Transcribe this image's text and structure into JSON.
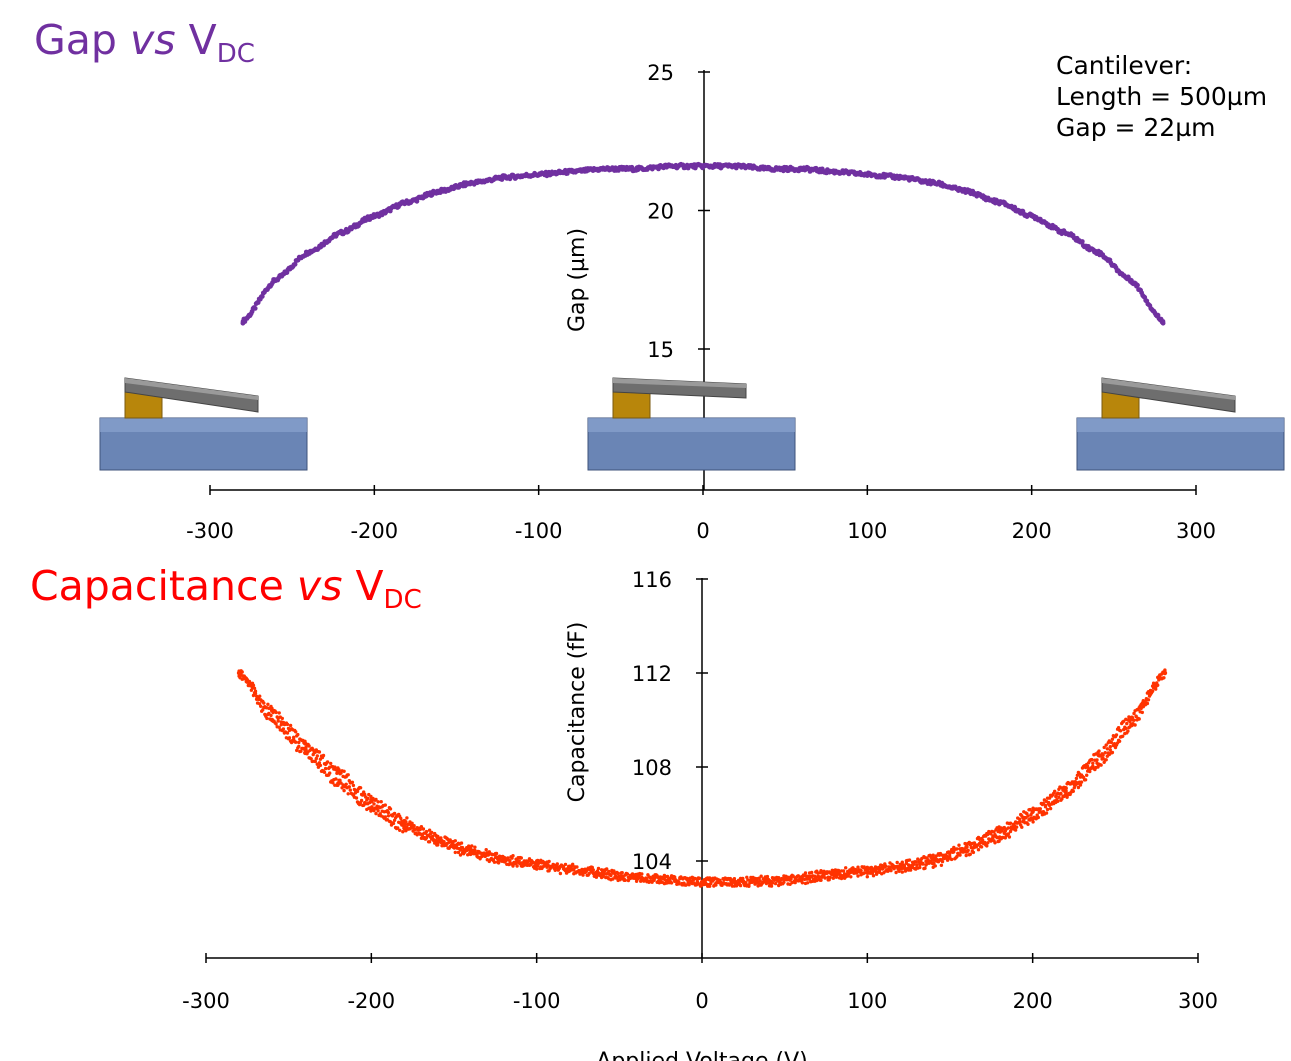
{
  "chart_data": [
    {
      "type": "scatter",
      "title": "Gap vs VDC",
      "title_parts": {
        "prefix": "Gap ",
        "vs": "vs",
        "v": " V",
        "sub": "DC"
      },
      "ylabel": "Gap (µm)",
      "xlabel": "",
      "xlim": [
        -300,
        300
      ],
      "ylim": [
        14,
        25
      ],
      "x_ticks": [
        -300,
        -200,
        -100,
        0,
        100,
        200,
        300
      ],
      "x_tick_labels": [
        "-300",
        "-200",
        "-100",
        "0",
        "100",
        "200",
        "300"
      ],
      "y_ticks": [
        15,
        20,
        25
      ],
      "y_tick_labels": [
        "15",
        "20",
        "25"
      ],
      "series": [
        {
          "color": "#7030a0",
          "x": [
            -280,
            -260,
            -240,
            -220,
            -200,
            -180,
            -160,
            -140,
            -120,
            -100,
            -80,
            -60,
            -40,
            -20,
            0,
            20,
            40,
            60,
            80,
            100,
            120,
            140,
            160,
            180,
            200,
            220,
            240,
            260,
            280
          ],
          "y": [
            16.0,
            17.5,
            18.5,
            19.2,
            19.8,
            20.3,
            20.7,
            21.0,
            21.2,
            21.3,
            21.4,
            21.5,
            21.5,
            21.6,
            21.6,
            21.6,
            21.5,
            21.5,
            21.4,
            21.3,
            21.2,
            21.0,
            20.7,
            20.3,
            19.8,
            19.2,
            18.5,
            17.5,
            16.0
          ]
        }
      ],
      "grid": false,
      "legend": "none"
    },
    {
      "type": "scatter",
      "title": "Capacitance vs VDC",
      "title_parts": {
        "prefix": "Capacitance ",
        "vs": "vs",
        "v": " V",
        "sub": "DC"
      },
      "ylabel": "Capacitance (fF)",
      "xlabel": "Applied Voltage (V)",
      "xlim": [
        -300,
        300
      ],
      "ylim": [
        100,
        116
      ],
      "x_ticks": [
        -300,
        -200,
        -100,
        0,
        100,
        200,
        300
      ],
      "x_tick_labels": [
        "-300",
        "-200",
        "-100",
        "0",
        "100",
        "200",
        "300"
      ],
      "y_ticks": [
        104,
        108,
        112,
        116
      ],
      "y_tick_labels": [
        "104",
        "108",
        "112",
        "116"
      ],
      "series": [
        {
          "color": "#ff3300",
          "x": [
            -280,
            -260,
            -240,
            -220,
            -200,
            -180,
            -160,
            -140,
            -120,
            -100,
            -80,
            -60,
            -40,
            -20,
            0,
            20,
            40,
            60,
            80,
            100,
            120,
            140,
            160,
            180,
            200,
            220,
            240,
            260,
            280
          ],
          "y": [
            112.0,
            110.0,
            108.6,
            107.3,
            106.2,
            105.4,
            104.8,
            104.3,
            104.0,
            103.8,
            103.6,
            103.4,
            103.3,
            103.2,
            103.1,
            103.1,
            103.2,
            103.3,
            103.5,
            103.6,
            103.8,
            104.1,
            104.6,
            105.3,
            106.1,
            107.1,
            108.5,
            110.1,
            112.0
          ]
        },
        {
          "color": "#ff3300",
          "x": [
            -280,
            -260,
            -240,
            -220,
            -200,
            -180,
            -160,
            -140,
            -120,
            -100,
            -80,
            -60,
            -40,
            -20,
            0,
            20,
            40,
            60,
            80,
            100,
            120,
            140,
            160,
            180,
            200,
            220,
            240,
            260,
            280
          ],
          "y": [
            112.0,
            110.4,
            109.0,
            107.8,
            106.6,
            105.7,
            105.0,
            104.5,
            104.1,
            103.9,
            103.7,
            103.5,
            103.3,
            103.2,
            103.1,
            103.1,
            103.1,
            103.2,
            103.4,
            103.5,
            103.7,
            103.9,
            104.4,
            105.0,
            105.8,
            106.8,
            108.1,
            109.8,
            112.0
          ]
        }
      ],
      "grid": false,
      "legend": "none"
    }
  ],
  "annotation": {
    "line1": "Cantilever:",
    "line2": "Length = 500µm",
    "line3": "Gap = 22µm"
  },
  "colors": {
    "cantilever_beam": "#6e6e6e",
    "anchor": "#b8860b",
    "substrate": "#6a85b5"
  }
}
